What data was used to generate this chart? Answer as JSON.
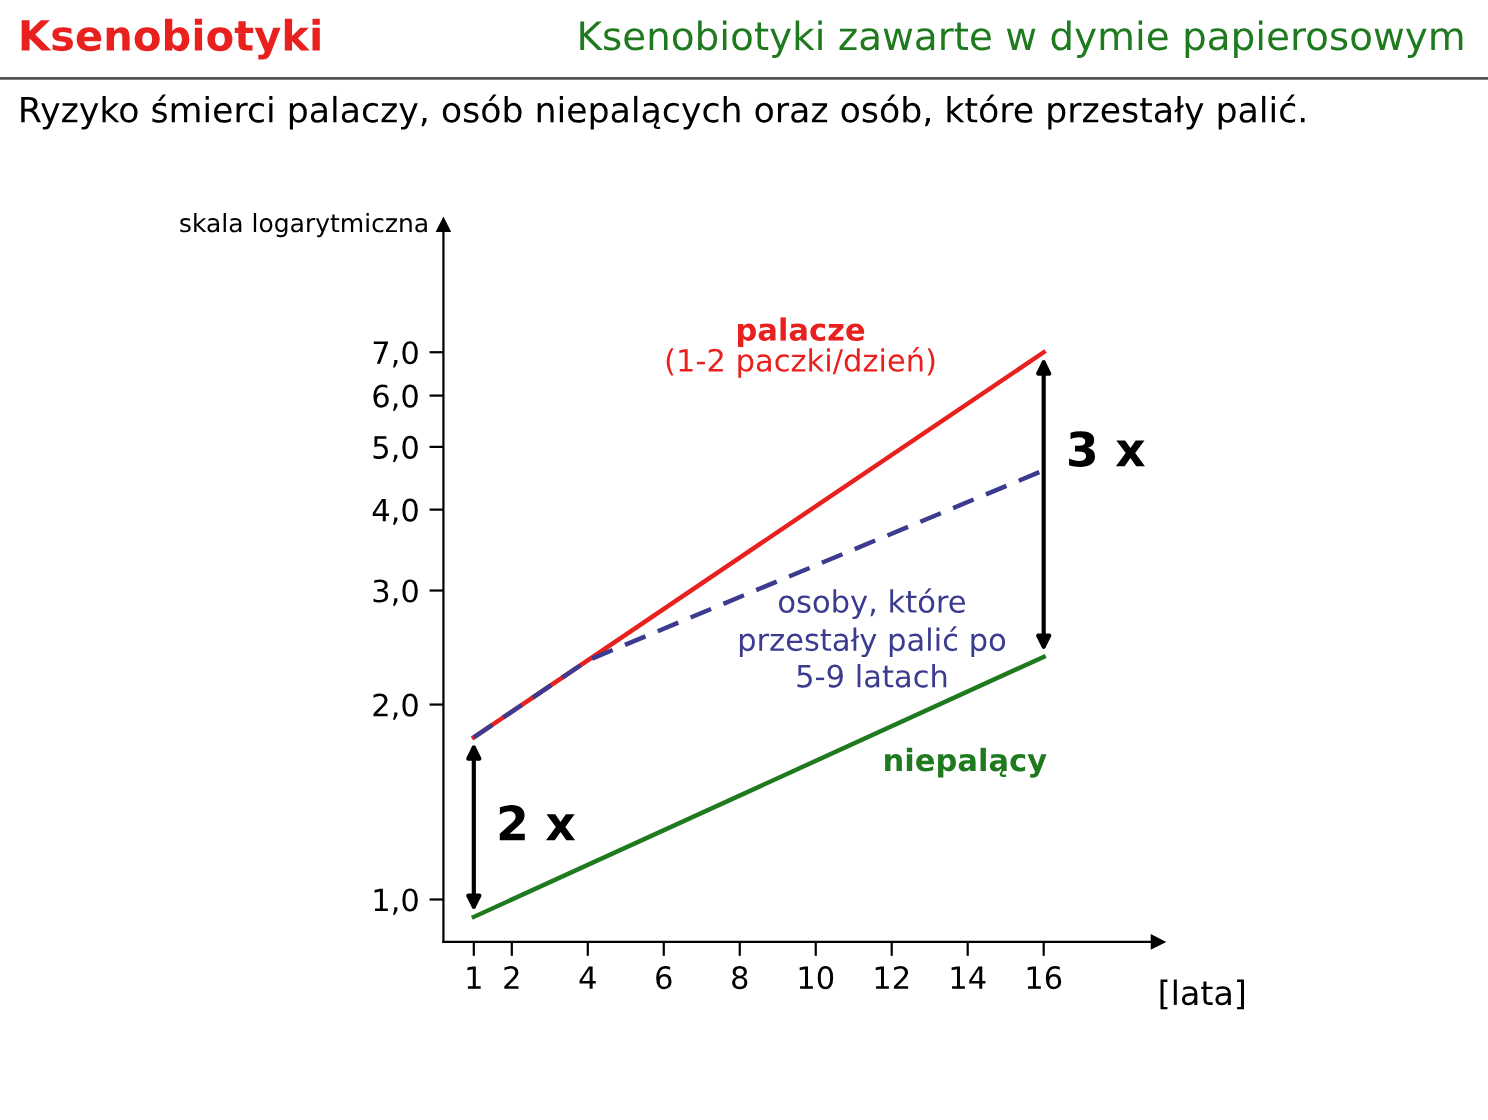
{
  "chart_data": {
    "type": "line",
    "title": "Ksenobiotyki",
    "subtitle": "Ryzyko śmierci palaczy, osób niepalących oraz osób, które przestały palić.",
    "ylabel": "skala logarytmiczna",
    "xlabel": "[lata]",
    "log": "y",
    "grid": false,
    "legend": false,
    "xlim": [
      0.2,
      19
    ],
    "xticks": [
      1,
      2,
      4,
      6,
      8,
      10,
      12,
      14,
      16
    ],
    "ylim": [
      0.86,
      11
    ],
    "yticks": [
      {
        "value": 1,
        "label": "1,0"
      },
      {
        "value": 2,
        "label": "2,0"
      },
      {
        "value": 3,
        "label": "3,0"
      },
      {
        "value": 4,
        "label": "4,0"
      },
      {
        "value": 5,
        "label": "5,0"
      },
      {
        "value": 6,
        "label": "6,0"
      },
      {
        "value": 7,
        "label": "7,0"
      }
    ],
    "series": [
      {
        "name": "palacze\n(1-2 paczki/dzień)",
        "color": "#e8211f",
        "x": [
          1,
          16
        ],
        "values": [
          1.78,
          7.0
        ],
        "line_style": "solid"
      },
      {
        "name": "osoby, które\nprzestały palić po\n5-9 latach",
        "color": "#3b3b8f",
        "x": [
          1,
          4,
          16
        ],
        "values": [
          1.78,
          2.34,
          4.6
        ],
        "line_style": "dashed"
      },
      {
        "name": "niepalący",
        "color": "#1f7a1f",
        "x": [
          1,
          16
        ],
        "values": [
          0.94,
          2.37
        ],
        "line_style": "solid"
      }
    ],
    "annotations": [
      "Ksenobiotyki zawarte w dymie papierosowym",
      "2 x",
      "3 x"
    ]
  }
}
